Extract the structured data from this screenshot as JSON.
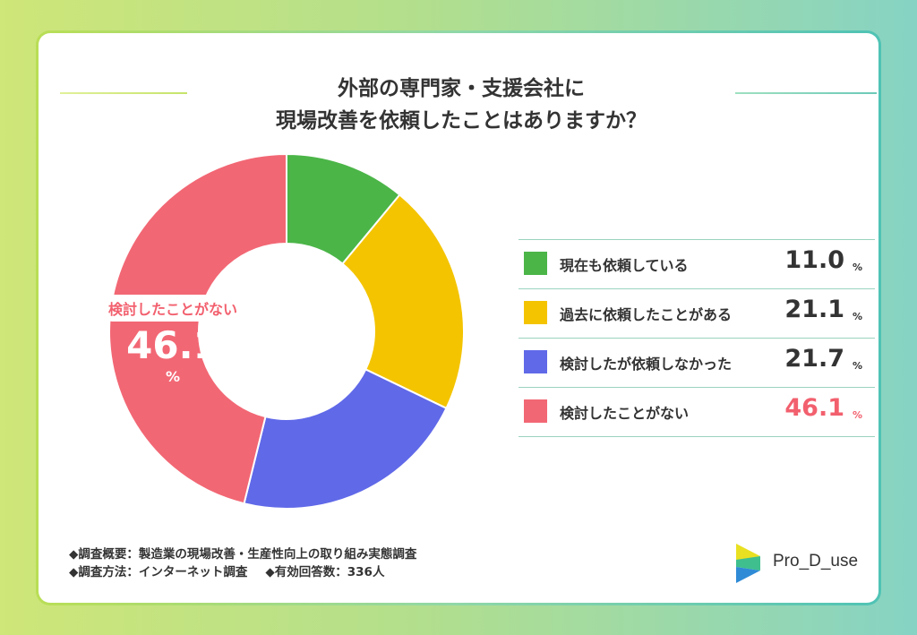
{
  "title": {
    "line1": "外部の専門家・支援会社に",
    "line2": "現場改善を依頼したことはありますか？"
  },
  "chart_data": {
    "type": "pie",
    "title": "外部の専門家・支援会社に 現場改善を依頼したことはありますか？",
    "categories": [
      "現在も依頼している",
      "過去に依頼したことがある",
      "検討したが依頼しなかった",
      "検討したことがない"
    ],
    "values": [
      11.0,
      21.1,
      21.7,
      46.1
    ],
    "value_labels": [
      "11.0",
      "21.1",
      "21.7",
      "46.1"
    ],
    "unit": "%",
    "colors": [
      "#4bb548",
      "#f4c400",
      "#6069e8",
      "#f26774"
    ],
    "highlight_index": 3,
    "style": "donut",
    "legend_position": "right"
  },
  "callout": {
    "label": "検討したことがない",
    "value": "46.1",
    "unit": "%"
  },
  "notes": {
    "line1": "◆調査概要：製造業の現場改善・生産性向上の取り組み実態調査",
    "line2a": "◆調査方法：インターネット調査",
    "line2b": "◆有効回答数：336人"
  },
  "brand": {
    "name": "Pro_D_use",
    "logo_colors": [
      "#e9e022",
      "#3fbf8e",
      "#2f8bd6"
    ]
  }
}
